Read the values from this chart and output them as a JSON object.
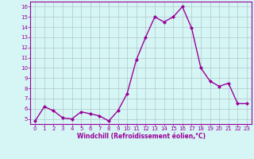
{
  "x": [
    0,
    1,
    2,
    3,
    4,
    5,
    6,
    7,
    8,
    9,
    10,
    11,
    12,
    13,
    14,
    15,
    16,
    17,
    18,
    19,
    20,
    21,
    22,
    23
  ],
  "y": [
    4.8,
    6.2,
    5.8,
    5.1,
    5.0,
    5.7,
    5.5,
    5.3,
    4.8,
    5.8,
    7.5,
    10.8,
    13.0,
    15.0,
    14.5,
    15.0,
    16.0,
    13.9,
    10.0,
    8.7,
    8.2,
    8.5,
    6.5,
    6.5
  ],
  "line_color": "#990099",
  "marker": "D",
  "marker_size": 2,
  "line_width": 1.0,
  "bg_color": "#d6f5f5",
  "grid_color": "#b0c8c8",
  "xlabel": "Windchill (Refroidissement éolien,°C)",
  "xlim": [
    -0.5,
    23.5
  ],
  "ylim": [
    4.5,
    16.5
  ],
  "yticks": [
    5,
    6,
    7,
    8,
    9,
    10,
    11,
    12,
    13,
    14,
    15,
    16
  ],
  "xticks": [
    0,
    1,
    2,
    3,
    4,
    5,
    6,
    7,
    8,
    9,
    10,
    11,
    12,
    13,
    14,
    15,
    16,
    17,
    18,
    19,
    20,
    21,
    22,
    23
  ],
  "tick_color": "#990099",
  "label_color": "#990099",
  "axis_color": "#990099",
  "tick_fontsize": 5.0,
  "xlabel_fontsize": 5.5
}
